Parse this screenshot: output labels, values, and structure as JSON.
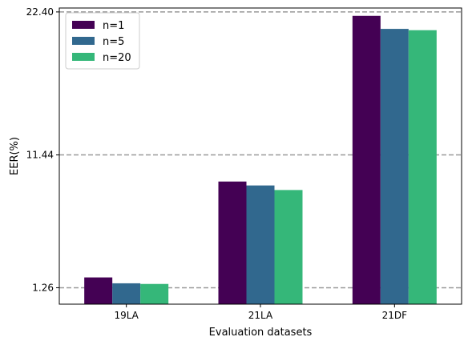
{
  "chart_data": {
    "type": "bar",
    "categories": [
      "19LA",
      "21LA",
      "21DF"
    ],
    "series": [
      {
        "name": "n=1",
        "color": "#440154",
        "values": [
          2.05,
          9.4,
          22.1
        ]
      },
      {
        "name": "n=5",
        "color": "#31688e",
        "values": [
          1.6,
          9.1,
          21.1
        ]
      },
      {
        "name": "n=20",
        "color": "#35b779",
        "values": [
          1.55,
          8.75,
          21.0
        ]
      }
    ],
    "xlabel": "Evaluation datasets",
    "ylabel": "EER(%)",
    "yticks": [
      1.26,
      11.44,
      22.4
    ],
    "ytick_labels": [
      "1.26",
      "11.44",
      "22.40"
    ],
    "ylim": [
      0.0,
      22.7
    ],
    "grid": "horizontal dashed at ticks",
    "gridline_color": "#999999",
    "legend_position": "top-left"
  }
}
